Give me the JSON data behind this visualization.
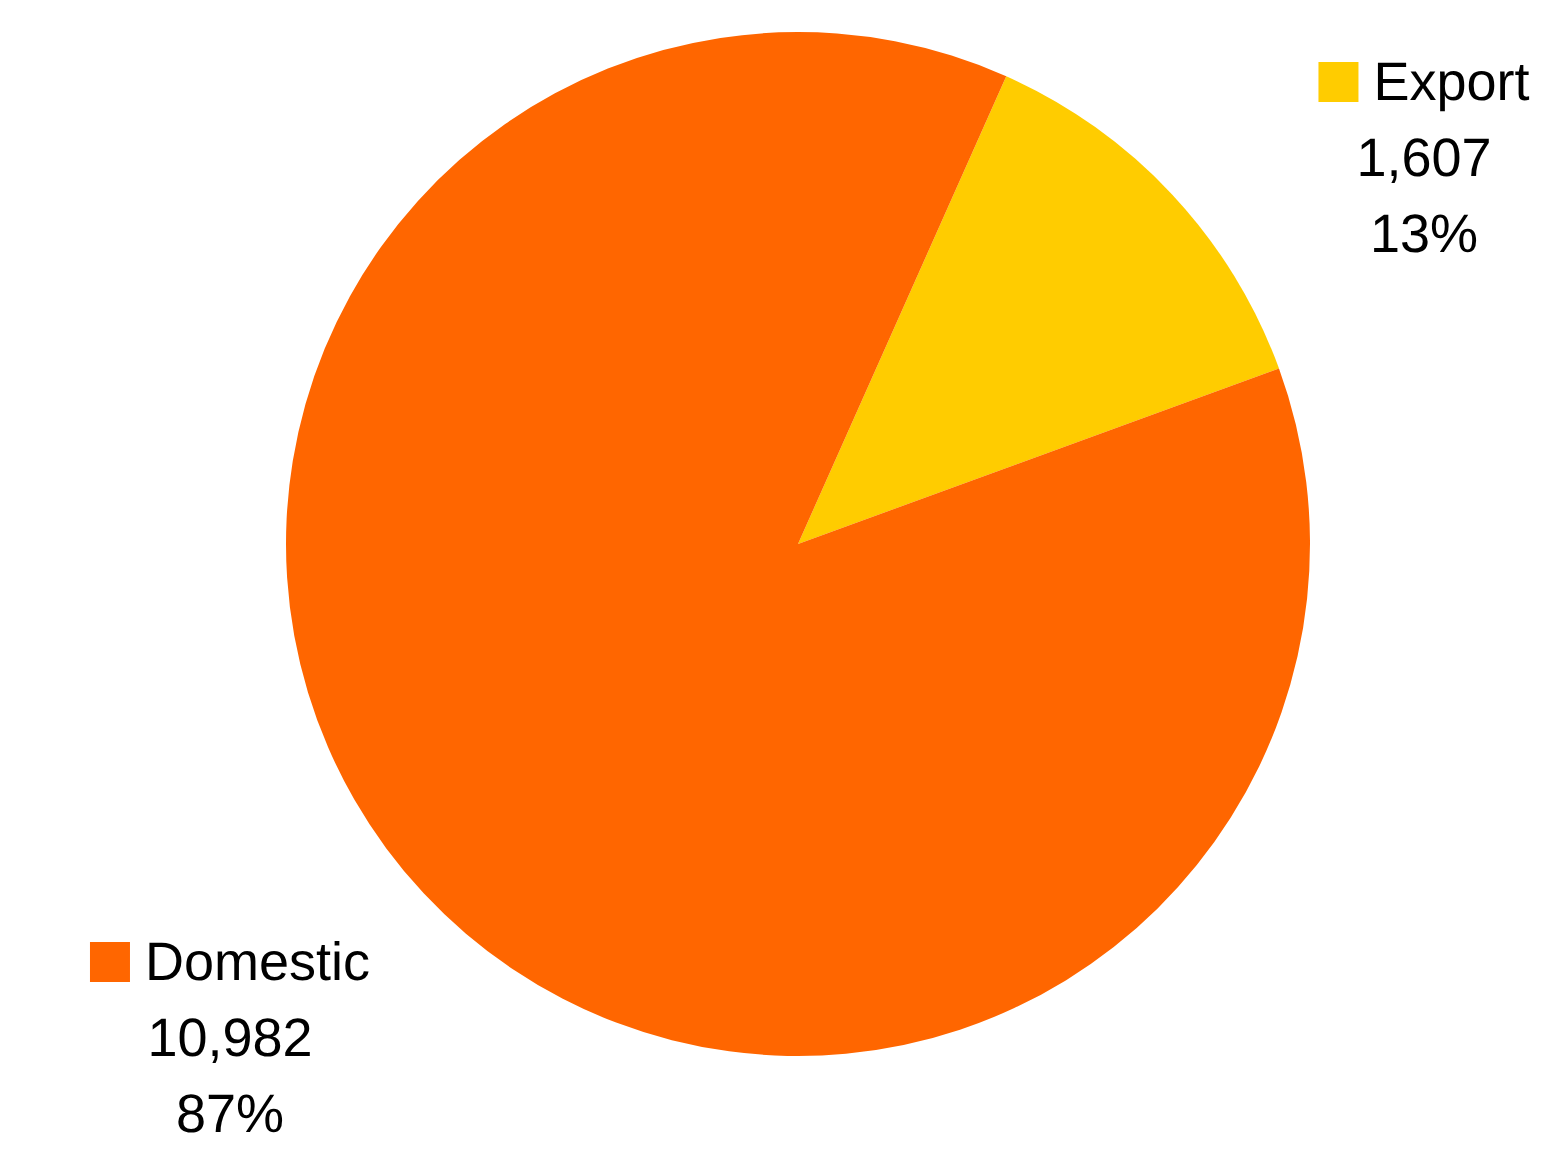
{
  "chart_data": {
    "type": "pie",
    "categories": [
      "Export",
      "Domestic"
    ],
    "values": [
      1607,
      10982
    ],
    "colors": [
      "#ffcc00",
      "#ff6600"
    ],
    "value_labels": [
      "1,607\n13%",
      "10,982\n87%"
    ],
    "legend": "right"
  }
}
